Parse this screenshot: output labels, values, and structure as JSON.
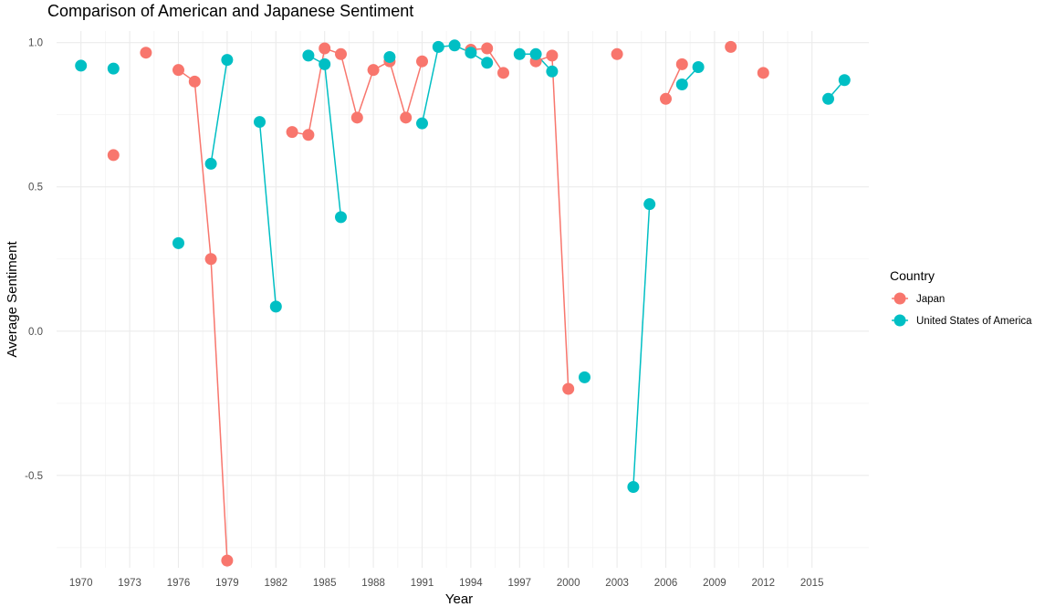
{
  "chart_data": {
    "type": "line",
    "title": "Comparison of American and Japanese Sentiment",
    "xlabel": "Year",
    "ylabel": "Average Sentiment",
    "xlim": [
      1968.5,
      2018.5
    ],
    "ylim": [
      -0.82,
      1.04
    ],
    "x_ticks": [
      1970,
      1973,
      1976,
      1979,
      1982,
      1985,
      1988,
      1991,
      1994,
      1997,
      2000,
      2003,
      2006,
      2009,
      2012,
      2015
    ],
    "x_tick_labels": [
      "1970",
      "1973",
      "1976",
      "1979",
      "1982",
      "1985",
      "1988",
      "1991",
      "1994",
      "1997",
      "2000",
      "2003",
      "2006",
      "2009",
      "2012",
      "2015"
    ],
    "y_ticks": [
      -0.5,
      0.0,
      0.5,
      1.0
    ],
    "y_tick_labels": [
      "-0.5",
      "0.0",
      "0.5",
      "1.0"
    ],
    "grid": true,
    "legend": {
      "title": "Country",
      "position": "right"
    },
    "series": [
      {
        "name": "Japan",
        "color": "#F8766D",
        "points": [
          [
            1972,
            0.61
          ],
          [
            1974,
            0.965
          ],
          [
            1976,
            0.905
          ],
          [
            1977,
            0.865
          ],
          [
            1978,
            0.25
          ],
          [
            1979,
            -0.795
          ],
          [
            1983,
            0.69
          ],
          [
            1984,
            0.68
          ],
          [
            1985,
            0.98
          ],
          [
            1986,
            0.96
          ],
          [
            1987,
            0.74
          ],
          [
            1988,
            0.905
          ],
          [
            1989,
            0.935
          ],
          [
            1990,
            0.74
          ],
          [
            1991,
            0.935
          ],
          [
            1994,
            0.975
          ],
          [
            1995,
            0.98
          ],
          [
            1996,
            0.895
          ],
          [
            1998,
            0.935
          ],
          [
            1999,
            0.955
          ],
          [
            2000,
            -0.2
          ],
          [
            2003,
            0.96
          ],
          [
            2006,
            0.805
          ],
          [
            2007,
            0.925
          ],
          [
            2010,
            0.985
          ],
          [
            2012,
            0.895
          ]
        ]
      },
      {
        "name": "United States of America",
        "color": "#00BFC4",
        "points": [
          [
            1970,
            0.92
          ],
          [
            1972,
            0.91
          ],
          [
            1976,
            0.305
          ],
          [
            1978,
            0.58
          ],
          [
            1979,
            0.94
          ],
          [
            1981,
            0.725
          ],
          [
            1982,
            0.085
          ],
          [
            1984,
            0.955
          ],
          [
            1985,
            0.925
          ],
          [
            1986,
            0.395
          ],
          [
            1989,
            0.95
          ],
          [
            1991,
            0.72
          ],
          [
            1992,
            0.985
          ],
          [
            1993,
            0.99
          ],
          [
            1994,
            0.965
          ],
          [
            1995,
            0.93
          ],
          [
            1997,
            0.96
          ],
          [
            1998,
            0.96
          ],
          [
            1999,
            0.9
          ],
          [
            2001,
            -0.16
          ],
          [
            2004,
            -0.54
          ],
          [
            2005,
            0.44
          ],
          [
            2007,
            0.855
          ],
          [
            2008,
            0.915
          ],
          [
            2016,
            0.805
          ],
          [
            2017,
            0.87
          ]
        ]
      }
    ]
  }
}
